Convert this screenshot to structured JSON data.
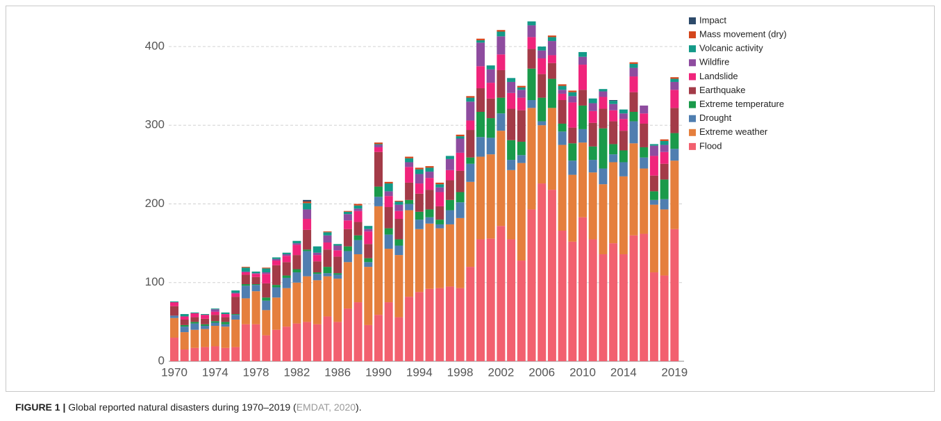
{
  "chart_data": {
    "type": "stacked_bar",
    "categories": [
      "1970",
      null,
      null,
      null,
      "1974",
      null,
      null,
      null,
      "1978",
      null,
      null,
      null,
      "1982",
      null,
      null,
      null,
      "1986",
      null,
      null,
      null,
      "1990",
      null,
      null,
      null,
      "1994",
      null,
      null,
      null,
      "1998",
      null,
      null,
      null,
      "2002",
      null,
      null,
      null,
      "2006",
      null,
      null,
      null,
      "2010",
      null,
      null,
      null,
      "2014",
      null,
      null,
      null,
      null,
      "2019"
    ],
    "ylim": [
      0,
      440
    ],
    "yticks": [
      0,
      100,
      200,
      300,
      400
    ],
    "grid": true,
    "legend": "top-right",
    "series": [
      {
        "name": "Flood",
        "color": "#f2606f",
        "values": [
          30,
          15,
          17,
          18,
          19,
          17,
          18,
          47,
          47,
          33,
          40,
          44,
          48,
          50,
          47,
          57,
          50,
          67,
          75,
          46,
          59,
          75,
          56,
          82,
          88,
          92,
          93,
          95,
          93,
          120,
          155,
          156,
          172,
          155,
          128,
          193,
          226,
          218,
          166,
          152,
          183,
          155,
          136,
          150,
          136,
          160,
          162,
          113,
          109,
          168
        ]
      },
      {
        "name": "Extreme weather",
        "color": "#e57f3d",
        "values": [
          25,
          22,
          23,
          23,
          26,
          27,
          35,
          33,
          42,
          32,
          41,
          49,
          52,
          58,
          56,
          51,
          55,
          59,
          61,
          74,
          138,
          68,
          79,
          110,
          80,
          83,
          76,
          79,
          89,
          108,
          105,
          107,
          121,
          88,
          124,
          129,
          74,
          104,
          109,
          85,
          95,
          85,
          89,
          103,
          99,
          117,
          83,
          86,
          84,
          87
        ]
      },
      {
        "name": "Drought",
        "color": "#4f7eb0",
        "values": [
          3,
          7,
          8,
          4,
          4,
          3,
          6,
          16,
          8,
          12,
          13,
          13,
          13,
          32,
          8,
          4,
          5,
          14,
          18,
          6,
          12,
          18,
          12,
          8,
          12,
          8,
          5,
          18,
          20,
          23,
          25,
          21,
          22,
          13,
          10,
          10,
          5,
          0,
          17,
          18,
          17,
          16,
          20,
          10,
          18,
          28,
          14,
          6,
          13,
          15
        ]
      },
      {
        "name": "Extreme temperature",
        "color": "#1a9a4a",
        "values": [
          0,
          2,
          2,
          2,
          2,
          3,
          1,
          2,
          1,
          4,
          3,
          3,
          4,
          2,
          2,
          8,
          2,
          6,
          6,
          5,
          13,
          8,
          8,
          5,
          10,
          10,
          6,
          13,
          13,
          8,
          32,
          25,
          20,
          25,
          17,
          40,
          30,
          37,
          10,
          22,
          30,
          17,
          51,
          13,
          15,
          12,
          13,
          11,
          25,
          20
        ]
      },
      {
        "name": "Earthquake",
        "color": "#a33b48",
        "values": [
          12,
          7,
          6,
          7,
          8,
          6,
          22,
          12,
          9,
          18,
          25,
          17,
          18,
          25,
          14,
          22,
          21,
          22,
          17,
          18,
          44,
          27,
          26,
          22,
          23,
          25,
          17,
          25,
          27,
          35,
          30,
          25,
          35,
          40,
          40,
          25,
          30,
          20,
          30,
          20,
          20,
          30,
          25,
          29,
          25,
          25,
          30,
          20,
          20,
          32
        ]
      },
      {
        "name": "Landslide",
        "color": "#f0247b",
        "values": [
          5,
          4,
          5,
          5,
          4,
          4,
          4,
          3,
          4,
          12,
          6,
          8,
          13,
          14,
          8,
          9,
          8,
          11,
          14,
          16,
          6,
          14,
          10,
          20,
          13,
          15,
          18,
          13,
          23,
          12,
          28,
          20,
          20,
          20,
          16,
          15,
          20,
          10,
          8,
          32,
          32,
          15,
          15,
          14,
          15,
          20,
          13,
          25,
          15,
          23
        ]
      },
      {
        "name": "Wildfire",
        "color": "#8e4c9f",
        "values": [
          0,
          0,
          0,
          0,
          3,
          0,
          1,
          1,
          1,
          2,
          2,
          2,
          2,
          12,
          3,
          9,
          6,
          8,
          3,
          3,
          3,
          6,
          8,
          6,
          12,
          8,
          6,
          14,
          18,
          24,
          30,
          17,
          23,
          14,
          10,
          15,
          10,
          18,
          5,
          8,
          10,
          10,
          7,
          8,
          7,
          11,
          10,
          13,
          9,
          10
        ]
      },
      {
        "name": "Volcanic activity",
        "color": "#139a88",
        "values": [
          1,
          3,
          1,
          1,
          1,
          2,
          3,
          5,
          2,
          5,
          2,
          2,
          3,
          8,
          8,
          4,
          2,
          3,
          4,
          4,
          1,
          10,
          4,
          5,
          6,
          5,
          4,
          4,
          3,
          5,
          3,
          5,
          6,
          5,
          3,
          5,
          5,
          5,
          5,
          5,
          6,
          6,
          3,
          4,
          5,
          5,
          0,
          2,
          5,
          4
        ]
      },
      {
        "name": "Mass movement (dry)",
        "color": "#d4461c",
        "values": [
          0,
          0,
          0,
          0,
          0,
          0,
          0,
          1,
          0,
          1,
          0,
          0,
          0,
          2,
          0,
          1,
          0,
          1,
          2,
          0,
          2,
          2,
          1,
          2,
          2,
          2,
          2,
          0,
          2,
          2,
          2,
          0,
          2,
          0,
          2,
          0,
          0,
          2,
          2,
          2,
          0,
          0,
          0,
          0,
          0,
          2,
          0,
          0,
          2,
          2
        ]
      },
      {
        "name": "Impact",
        "color": "#2d4a6a",
        "values": [
          0,
          0,
          0,
          0,
          0,
          0,
          0,
          0,
          0,
          0,
          0,
          0,
          0,
          2,
          0,
          0,
          0,
          0,
          0,
          0,
          0,
          0,
          0,
          0,
          0,
          0,
          0,
          0,
          0,
          0,
          0,
          0,
          0,
          0,
          0,
          0,
          0,
          0,
          0,
          0,
          0,
          0,
          0,
          1,
          0,
          0,
          0,
          0,
          0,
          0
        ]
      }
    ],
    "caption": {
      "label": "FIGURE 1 |",
      "text": "Global reported natural disasters during 1970–2019 (",
      "source": "EMDAT, 2020",
      "end": ")."
    }
  }
}
